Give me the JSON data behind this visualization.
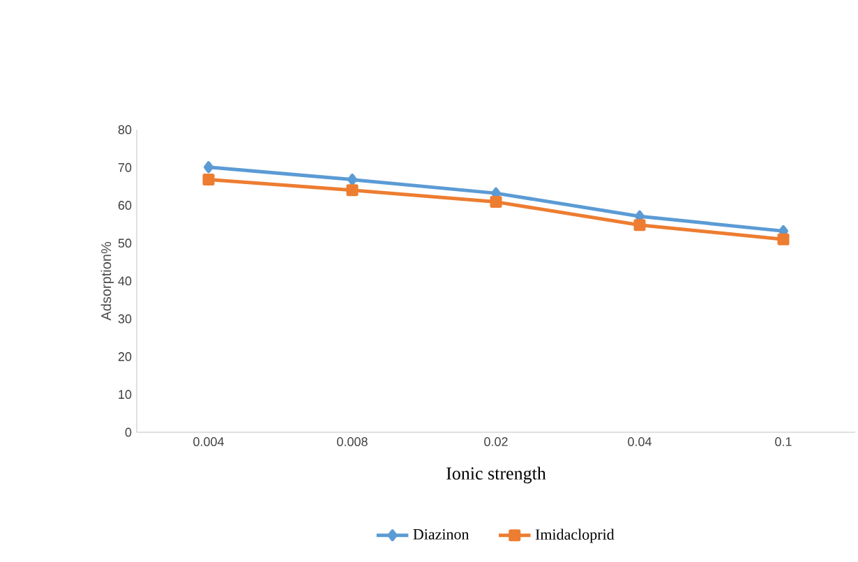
{
  "chart_data": {
    "type": "line",
    "categories": [
      "0.004",
      "0.008",
      "0.02",
      "0.04",
      "0.1"
    ],
    "xlabel": "Ionic strength",
    "ylabel": "Adsorption%",
    "series": [
      {
        "name": "Diazinon",
        "color": "#5b9bd5",
        "marker": "diamond",
        "values": [
          70.1,
          66.8,
          63.2,
          57.1,
          53.2
        ]
      },
      {
        "name": "Imidacloprid",
        "color": "#ed7d31",
        "marker": "square",
        "values": [
          66.8,
          64.0,
          60.9,
          54.8,
          51.0
        ]
      }
    ],
    "ylim": [
      0,
      80
    ],
    "yticks": [
      0,
      10,
      20,
      30,
      40,
      50,
      60,
      70,
      80
    ],
    "grid": false,
    "legend": "bottom"
  }
}
